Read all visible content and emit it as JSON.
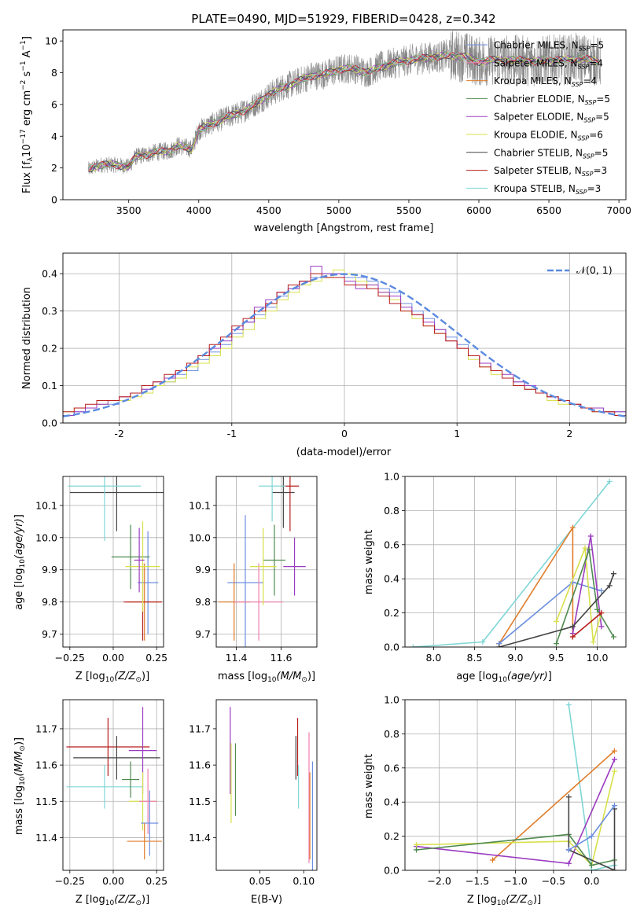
{
  "colors": {
    "Chabrier MILES": "#6d8fe0",
    "Salpeter MILES": "#f07fb0",
    "Kroupa MILES": "#e07d2a",
    "Chabrier ELODIE": "#4f8a4f",
    "Salpeter ELODIE": "#9b3cc0",
    "Kroupa ELODIE": "#d7e04a",
    "Chabrier STELIB": "#444444",
    "Salpeter STELIB": "#b81c1c",
    "Kroupa STELIB": "#7fd6d6",
    "data": "#888888",
    "normal": "#5b8ae0",
    "grid": "#b0b0b0"
  },
  "chart_data": [
    {
      "type": "line",
      "title": "PLATE=0490, MJD=51929, FIBERID=0428, z=0.342",
      "xlabel": "wavelength [Angstrom, rest frame]",
      "ylabel": "Flux [fλ10⁻¹⁷ erg cm⁻² s⁻¹ A⁻¹]",
      "xlim": [
        3030,
        7050
      ],
      "ylim": [
        0,
        10.7
      ],
      "xticks": [
        3500,
        4000,
        4500,
        5000,
        5500,
        6000,
        6500,
        7000
      ],
      "yticks": [
        0,
        2,
        4,
        6,
        8,
        10
      ],
      "grid": false,
      "legend_position": "top-right",
      "legend": [
        "Chabrier MILES, N_SSP=5",
        "Salpeter MILES, N_SSP=4",
        "Kroupa MILES, N_SSP=4",
        "Chabrier ELODIE, N_SSP=5",
        "Salpeter ELODIE, N_SSP=5",
        "Kroupa ELODIE, N_SSP=6",
        "Chabrier STELIB, N_SSP=5",
        "Salpeter STELIB, N_SSP=3",
        "Kroupa STELIB, N_SSP=3"
      ],
      "legend_lines": [
        [
          "Chabrier MILES, N",
          "SSP",
          "=5"
        ],
        [
          "Salpeter MILES, N",
          "SSP",
          "=4"
        ],
        [
          "Kroupa MILES, N",
          "SSP",
          "=4"
        ],
        [
          "Chabrier ELODIE, N",
          "SSP",
          "=5"
        ],
        [
          "Salpeter ELODIE, N",
          "SSP",
          "=5"
        ],
        [
          "Kroupa ELODIE, N",
          "SSP",
          "=6"
        ],
        [
          "Chabrier STELIB, N",
          "SSP",
          "=5"
        ],
        [
          "Salpeter STELIB, N",
          "SSP",
          "=3"
        ],
        [
          "Kroupa STELIB, N",
          "SSP",
          "=3"
        ]
      ],
      "spectrum_continuum": {
        "wavelength": [
          3210,
          3300,
          3400,
          3500,
          3550,
          3700,
          3800,
          3850,
          3900,
          3950,
          4000,
          4100,
          4200,
          4300,
          4400,
          4500,
          4600,
          4700,
          4800,
          4900,
          5000,
          5100,
          5200,
          5300,
          5400,
          5500,
          5600,
          5700,
          5800,
          5900,
          6000,
          6100,
          6200,
          6300,
          6400,
          6500,
          6600,
          6700,
          6800,
          6900
        ],
        "flux": [
          1.9,
          2.2,
          2.2,
          2.1,
          2.7,
          3.0,
          3.1,
          3.4,
          3.3,
          3.2,
          4.4,
          4.8,
          5.2,
          5.5,
          6.0,
          6.6,
          7.1,
          7.4,
          7.8,
          7.9,
          8.2,
          8.3,
          8.0,
          8.4,
          8.6,
          8.8,
          8.9,
          9.0,
          9.1,
          9.0,
          8.7,
          8.8,
          8.8,
          8.8,
          8.7,
          8.8,
          8.8,
          8.9,
          8.8,
          8.6
        ]
      }
    },
    {
      "type": "histogram",
      "xlabel": "(data-model)/error",
      "ylabel": "Normed distribution",
      "xlim": [
        -2.5,
        2.5
      ],
      "ylim": [
        0,
        0.455
      ],
      "xticks": [
        -2,
        -1,
        0,
        1,
        2
      ],
      "yticks": [
        0.0,
        0.1,
        0.2,
        0.3,
        0.4
      ],
      "grid": true,
      "legend_position": "top-right",
      "normal_label": "𝒩(0, 1)",
      "bins": 50,
      "histograms": [
        {
          "name": "Chabrier MILES",
          "values": [
            0.02,
            0.03,
            0.04,
            0.05,
            0.05,
            0.06,
            0.08,
            0.09,
            0.1,
            0.11,
            0.13,
            0.14,
            0.17,
            0.19,
            0.21,
            0.24,
            0.27,
            0.29,
            0.31,
            0.34,
            0.36,
            0.38,
            0.39,
            0.4,
            0.4,
            0.39,
            0.39,
            0.38,
            0.36,
            0.35,
            0.32,
            0.3,
            0.28,
            0.25,
            0.23,
            0.21,
            0.18,
            0.16,
            0.14,
            0.12,
            0.11,
            0.09,
            0.08,
            0.07,
            0.06,
            0.05,
            0.04,
            0.04,
            0.03,
            0.03
          ]
        },
        {
          "name": "Kroupa ELODIE",
          "values": [
            0.03,
            0.04,
            0.04,
            0.05,
            0.06,
            0.06,
            0.07,
            0.08,
            0.1,
            0.11,
            0.12,
            0.15,
            0.16,
            0.18,
            0.2,
            0.23,
            0.25,
            0.28,
            0.3,
            0.33,
            0.35,
            0.37,
            0.38,
            0.39,
            0.41,
            0.4,
            0.38,
            0.37,
            0.35,
            0.33,
            0.3,
            0.28,
            0.26,
            0.24,
            0.22,
            0.2,
            0.17,
            0.15,
            0.13,
            0.12,
            0.1,
            0.09,
            0.08,
            0.06,
            0.05,
            0.05,
            0.04,
            0.03,
            0.03,
            0.02
          ]
        },
        {
          "name": "Salpeter ELODIE",
          "values": [
            0.02,
            0.03,
            0.04,
            0.05,
            0.06,
            0.07,
            0.08,
            0.09,
            0.11,
            0.12,
            0.14,
            0.16,
            0.18,
            0.2,
            0.22,
            0.25,
            0.27,
            0.31,
            0.33,
            0.35,
            0.36,
            0.38,
            0.42,
            0.4,
            0.4,
            0.38,
            0.36,
            0.37,
            0.35,
            0.34,
            0.31,
            0.29,
            0.27,
            0.25,
            0.22,
            0.2,
            0.18,
            0.16,
            0.14,
            0.13,
            0.11,
            0.1,
            0.08,
            0.07,
            0.06,
            0.05,
            0.04,
            0.04,
            0.03,
            0.03
          ]
        },
        {
          "name": "Salpeter STELIB",
          "values": [
            0.03,
            0.04,
            0.05,
            0.06,
            0.06,
            0.07,
            0.08,
            0.1,
            0.11,
            0.13,
            0.14,
            0.16,
            0.18,
            0.21,
            0.23,
            0.26,
            0.28,
            0.3,
            0.32,
            0.35,
            0.37,
            0.38,
            0.4,
            0.39,
            0.39,
            0.37,
            0.37,
            0.36,
            0.34,
            0.32,
            0.3,
            0.29,
            0.26,
            0.24,
            0.22,
            0.2,
            0.18,
            0.15,
            0.14,
            0.12,
            0.1,
            0.09,
            0.08,
            0.07,
            0.06,
            0.05,
            0.04,
            0.03,
            0.03,
            0.02
          ]
        }
      ]
    },
    {
      "type": "errorbar",
      "xlabel": "Z [log10(Z/Z☉)]",
      "ylabel": "age  [log10(age/yr)]",
      "xlim": [
        -0.29,
        0.29
      ],
      "ylim": [
        9.66,
        10.19
      ],
      "xticks": [
        -0.25,
        0.0,
        0.25
      ],
      "xticklabels": [
        "−0.25",
        "0.00",
        "0.25"
      ],
      "yticks": [
        9.7,
        9.8,
        9.9,
        10.0,
        10.1
      ],
      "grid": true,
      "points": [
        {
          "name": "Chabrier MILES",
          "x": 0.2,
          "y": 9.86,
          "xerr": 0.06,
          "yerr": 0.16
        },
        {
          "name": "Kroupa MILES",
          "x": 0.18,
          "y": 9.8,
          "xerr": 0.1,
          "yerr": 0.12
        },
        {
          "name": "Salpeter STELIB",
          "x": 0.17,
          "y": 9.8,
          "xerr": 0.11,
          "yerr": 0.12
        },
        {
          "name": "Chabrier ELODIE",
          "x": 0.1,
          "y": 9.94,
          "xerr": 0.11,
          "yerr": 0.1
        },
        {
          "name": "Kroupa ELODIE",
          "x": 0.17,
          "y": 9.91,
          "xerr": 0.1,
          "yerr": 0.14
        },
        {
          "name": "Salpeter ELODIE",
          "x": 0.15,
          "y": 9.93,
          "xerr": 0.03,
          "yerr": 0.1
        },
        {
          "name": "Chabrier STELIB",
          "x": 0.02,
          "y": 10.14,
          "xerr": 0.27,
          "yerr": 0.12
        },
        {
          "name": "Kroupa STELIB",
          "x": -0.05,
          "y": 10.16,
          "xerr": 0.21,
          "yerr": 0.17
        }
      ]
    },
    {
      "type": "errorbar",
      "xlabel": "mass [log10(M/M☉)]",
      "ylabel": "",
      "xlim": [
        11.31,
        11.76
      ],
      "ylim": [
        9.66,
        10.19
      ],
      "xticks": [
        11.4,
        11.6
      ],
      "yticks": [
        9.7,
        9.8,
        9.9,
        10.0,
        10.1
      ],
      "grid": true,
      "points": [
        {
          "name": "Chabrier MILES",
          "x": 11.44,
          "y": 9.86,
          "xerr": 0.08,
          "yerr": 0.21
        },
        {
          "name": "Kroupa MILES",
          "x": 11.39,
          "y": 9.8,
          "xerr": 0.07,
          "yerr": 0.12
        },
        {
          "name": "Salpeter MILES",
          "x": 11.5,
          "y": 9.8,
          "xerr": 0.11,
          "yerr": 0.12
        },
        {
          "name": "Chabrier ELODIE",
          "x": 11.57,
          "y": 9.93,
          "xerr": 0.05,
          "yerr": 0.11
        },
        {
          "name": "Salpeter ELODIE",
          "x": 11.66,
          "y": 9.91,
          "xerr": 0.05,
          "yerr": 0.09
        },
        {
          "name": "Kroupa ELODIE",
          "x": 11.52,
          "y": 9.91,
          "xerr": 0.06,
          "yerr": 0.12
        },
        {
          "name": "Chabrier STELIB",
          "x": 11.61,
          "y": 10.14,
          "xerr": 0.05,
          "yerr": 0.11
        },
        {
          "name": "Salpeter STELIB",
          "x": 11.64,
          "y": 10.16,
          "xerr": 0.04,
          "yerr": 0.14
        },
        {
          "name": "Kroupa STELIB",
          "x": 11.56,
          "y": 10.16,
          "xerr": 0.06,
          "yerr": 0.11
        }
      ]
    },
    {
      "type": "line",
      "xlabel": "age  [log10(age/yr)]",
      "ylabel": "mass weight",
      "xlim": [
        7.65,
        10.35
      ],
      "ylim": [
        0,
        1.0
      ],
      "xticks": [
        8.0,
        8.5,
        9.0,
        9.5,
        10.0
      ],
      "yticks": [
        0.0,
        0.2,
        0.4,
        0.6,
        0.8,
        1.0
      ],
      "grid": true,
      "series": [
        {
          "name": "Kroupa STELIB",
          "x": [
            7.75,
            8.6,
            10.15
          ],
          "y": [
            0.0,
            0.03,
            0.97
          ]
        },
        {
          "name": "Kroupa MILES",
          "x": [
            8.8,
            9.7,
            9.7
          ],
          "y": [
            0.02,
            0.7,
            0.06
          ]
        },
        {
          "name": "Chabrier MILES",
          "x": [
            8.8,
            9.7,
            10.05
          ],
          "y": [
            0.02,
            0.38,
            0.33
          ]
        },
        {
          "name": "Salpeter ELODIE",
          "x": [
            9.7,
            9.92,
            10.05
          ],
          "y": [
            0.08,
            0.65,
            0.12
          ]
        },
        {
          "name": "Kroupa ELODIE",
          "x": [
            9.5,
            9.85,
            9.95,
            10.05
          ],
          "y": [
            0.15,
            0.58,
            0.03,
            0.2
          ]
        },
        {
          "name": "Chabrier ELODIE",
          "x": [
            9.5,
            9.9,
            10.0,
            10.2
          ],
          "y": [
            0.02,
            0.57,
            0.22,
            0.06
          ]
        },
        {
          "name": "Chabrier STELIB",
          "x": [
            8.8,
            9.7,
            10.15,
            10.2
          ],
          "y": [
            0.0,
            0.12,
            0.36,
            0.43
          ]
        },
        {
          "name": "Salpeter STELIB",
          "x": [
            9.7,
            10.05
          ],
          "y": [
            0.06,
            0.2
          ]
        }
      ]
    },
    {
      "type": "errorbar",
      "xlabel": "Z [log10(Z/Z☉)]",
      "ylabel": "mass [log10(M/M☉)]",
      "xlim": [
        -0.29,
        0.29
      ],
      "ylim": [
        11.31,
        11.78
      ],
      "xticks": [
        -0.25,
        0.0,
        0.25
      ],
      "xticklabels": [
        "−0.25",
        "0.00",
        "0.25"
      ],
      "yticks": [
        11.4,
        11.5,
        11.6,
        11.7
      ],
      "grid": true,
      "points": [
        {
          "name": "Salpeter STELIB",
          "x": -0.03,
          "y": 11.65,
          "xerr": 0.24,
          "yerr": 0.08
        },
        {
          "name": "Chabrier STELIB",
          "x": 0.02,
          "y": 11.62,
          "xerr": 0.25,
          "yerr": 0.06
        },
        {
          "name": "Kroupa STELIB",
          "x": -0.05,
          "y": 11.54,
          "xerr": 0.22,
          "yerr": 0.06
        },
        {
          "name": "Salpeter ELODIE",
          "x": 0.17,
          "y": 11.64,
          "xerr": 0.08,
          "yerr": 0.12
        },
        {
          "name": "Chabrier ELODIE",
          "x": 0.1,
          "y": 11.56,
          "xerr": 0.05,
          "yerr": 0.05
        },
        {
          "name": "Kroupa ELODIE",
          "x": 0.17,
          "y": 11.5,
          "xerr": 0.08,
          "yerr": 0.08
        },
        {
          "name": "Salpeter MILES",
          "x": 0.2,
          "y": 11.5,
          "xerr": 0.05,
          "yerr": 0.09
        },
        {
          "name": "Chabrier MILES",
          "x": 0.21,
          "y": 11.44,
          "xerr": 0.05,
          "yerr": 0.09
        },
        {
          "name": "Kroupa MILES",
          "x": 0.18,
          "y": 11.39,
          "xerr": 0.1,
          "yerr": 0.05
        }
      ]
    },
    {
      "type": "errorbar",
      "xlabel": "E(B-V)",
      "ylabel": "",
      "xlim": [
        0.0,
        0.115
      ],
      "ylim": [
        11.31,
        11.78
      ],
      "xticks": [
        0.05,
        0.1
      ],
      "yticks": [
        11.4,
        11.5,
        11.6,
        11.7
      ],
      "grid": false,
      "points": [
        {
          "name": "Salpeter ELODIE",
          "x": 0.016,
          "y": 11.64,
          "xerr": 0.0,
          "yerr": 0.12
        },
        {
          "name": "Kroupa ELODIE",
          "x": 0.017,
          "y": 11.55,
          "xerr": 0.0,
          "yerr": 0.11
        },
        {
          "name": "Chabrier ELODIE",
          "x": 0.022,
          "y": 11.56,
          "xerr": 0.0,
          "yerr": 0.1
        },
        {
          "name": "Chabrier STELIB",
          "x": 0.091,
          "y": 11.62,
          "xerr": 0.0,
          "yerr": 0.06
        },
        {
          "name": "Salpeter STELIB",
          "x": 0.093,
          "y": 11.65,
          "xerr": 0.0,
          "yerr": 0.08
        },
        {
          "name": "Kroupa STELIB",
          "x": 0.094,
          "y": 11.54,
          "xerr": 0.0,
          "yerr": 0.06
        },
        {
          "name": "Salpeter MILES",
          "x": 0.106,
          "y": 11.51,
          "xerr": 0.0,
          "yerr": 0.18
        },
        {
          "name": "Chabrier MILES",
          "x": 0.11,
          "y": 11.46,
          "xerr": 0.0,
          "yerr": 0.15
        },
        {
          "name": "Kroupa MILES",
          "x": 0.107,
          "y": 11.46,
          "xerr": 0.0,
          "yerr": 0.12
        }
      ]
    },
    {
      "type": "line",
      "xlabel": "Z [log10(Z/Z☉)]",
      "ylabel": "mass weight",
      "xlim": [
        -2.45,
        0.45
      ],
      "ylim": [
        0,
        1.0
      ],
      "xticks": [
        -2.0,
        -1.5,
        -1.0,
        -0.5,
        0.0
      ],
      "xticklabels": [
        "−2.0",
        "−1.5",
        "−1.0",
        "−0.5",
        "0.0"
      ],
      "yticks": [
        0.0,
        0.2,
        0.4,
        0.6,
        0.8,
        1.0
      ],
      "grid": true,
      "series": [
        {
          "name": "Kroupa STELIB",
          "x": [
            -0.3,
            0.0,
            0.3
          ],
          "y": [
            0.97,
            0.0,
            0.03
          ]
        },
        {
          "name": "Kroupa MILES",
          "x": [
            -1.3,
            0.3
          ],
          "y": [
            0.06,
            0.7
          ]
        },
        {
          "name": "Salpeter ELODIE",
          "x": [
            -2.3,
            -0.3,
            0.3
          ],
          "y": [
            0.14,
            0.04,
            0.65
          ]
        },
        {
          "name": "Kroupa ELODIE",
          "x": [
            -2.3,
            -0.3,
            0.0,
            0.3
          ],
          "y": [
            0.15,
            0.17,
            0.03,
            0.58
          ]
        },
        {
          "name": "Chabrier ELODIE",
          "x": [
            -2.3,
            -0.3,
            0.0,
            0.3
          ],
          "y": [
            0.12,
            0.21,
            0.03,
            0.06
          ]
        },
        {
          "name": "Chabrier STELIB",
          "x": [
            -0.3,
            -0.3,
            0.3,
            0.3
          ],
          "y": [
            0.43,
            0.12,
            0.0,
            0.36
          ]
        },
        {
          "name": "Chabrier MILES",
          "x": [
            -0.3,
            0.0,
            0.3
          ],
          "y": [
            0.12,
            0.2,
            0.38
          ]
        }
      ]
    }
  ]
}
